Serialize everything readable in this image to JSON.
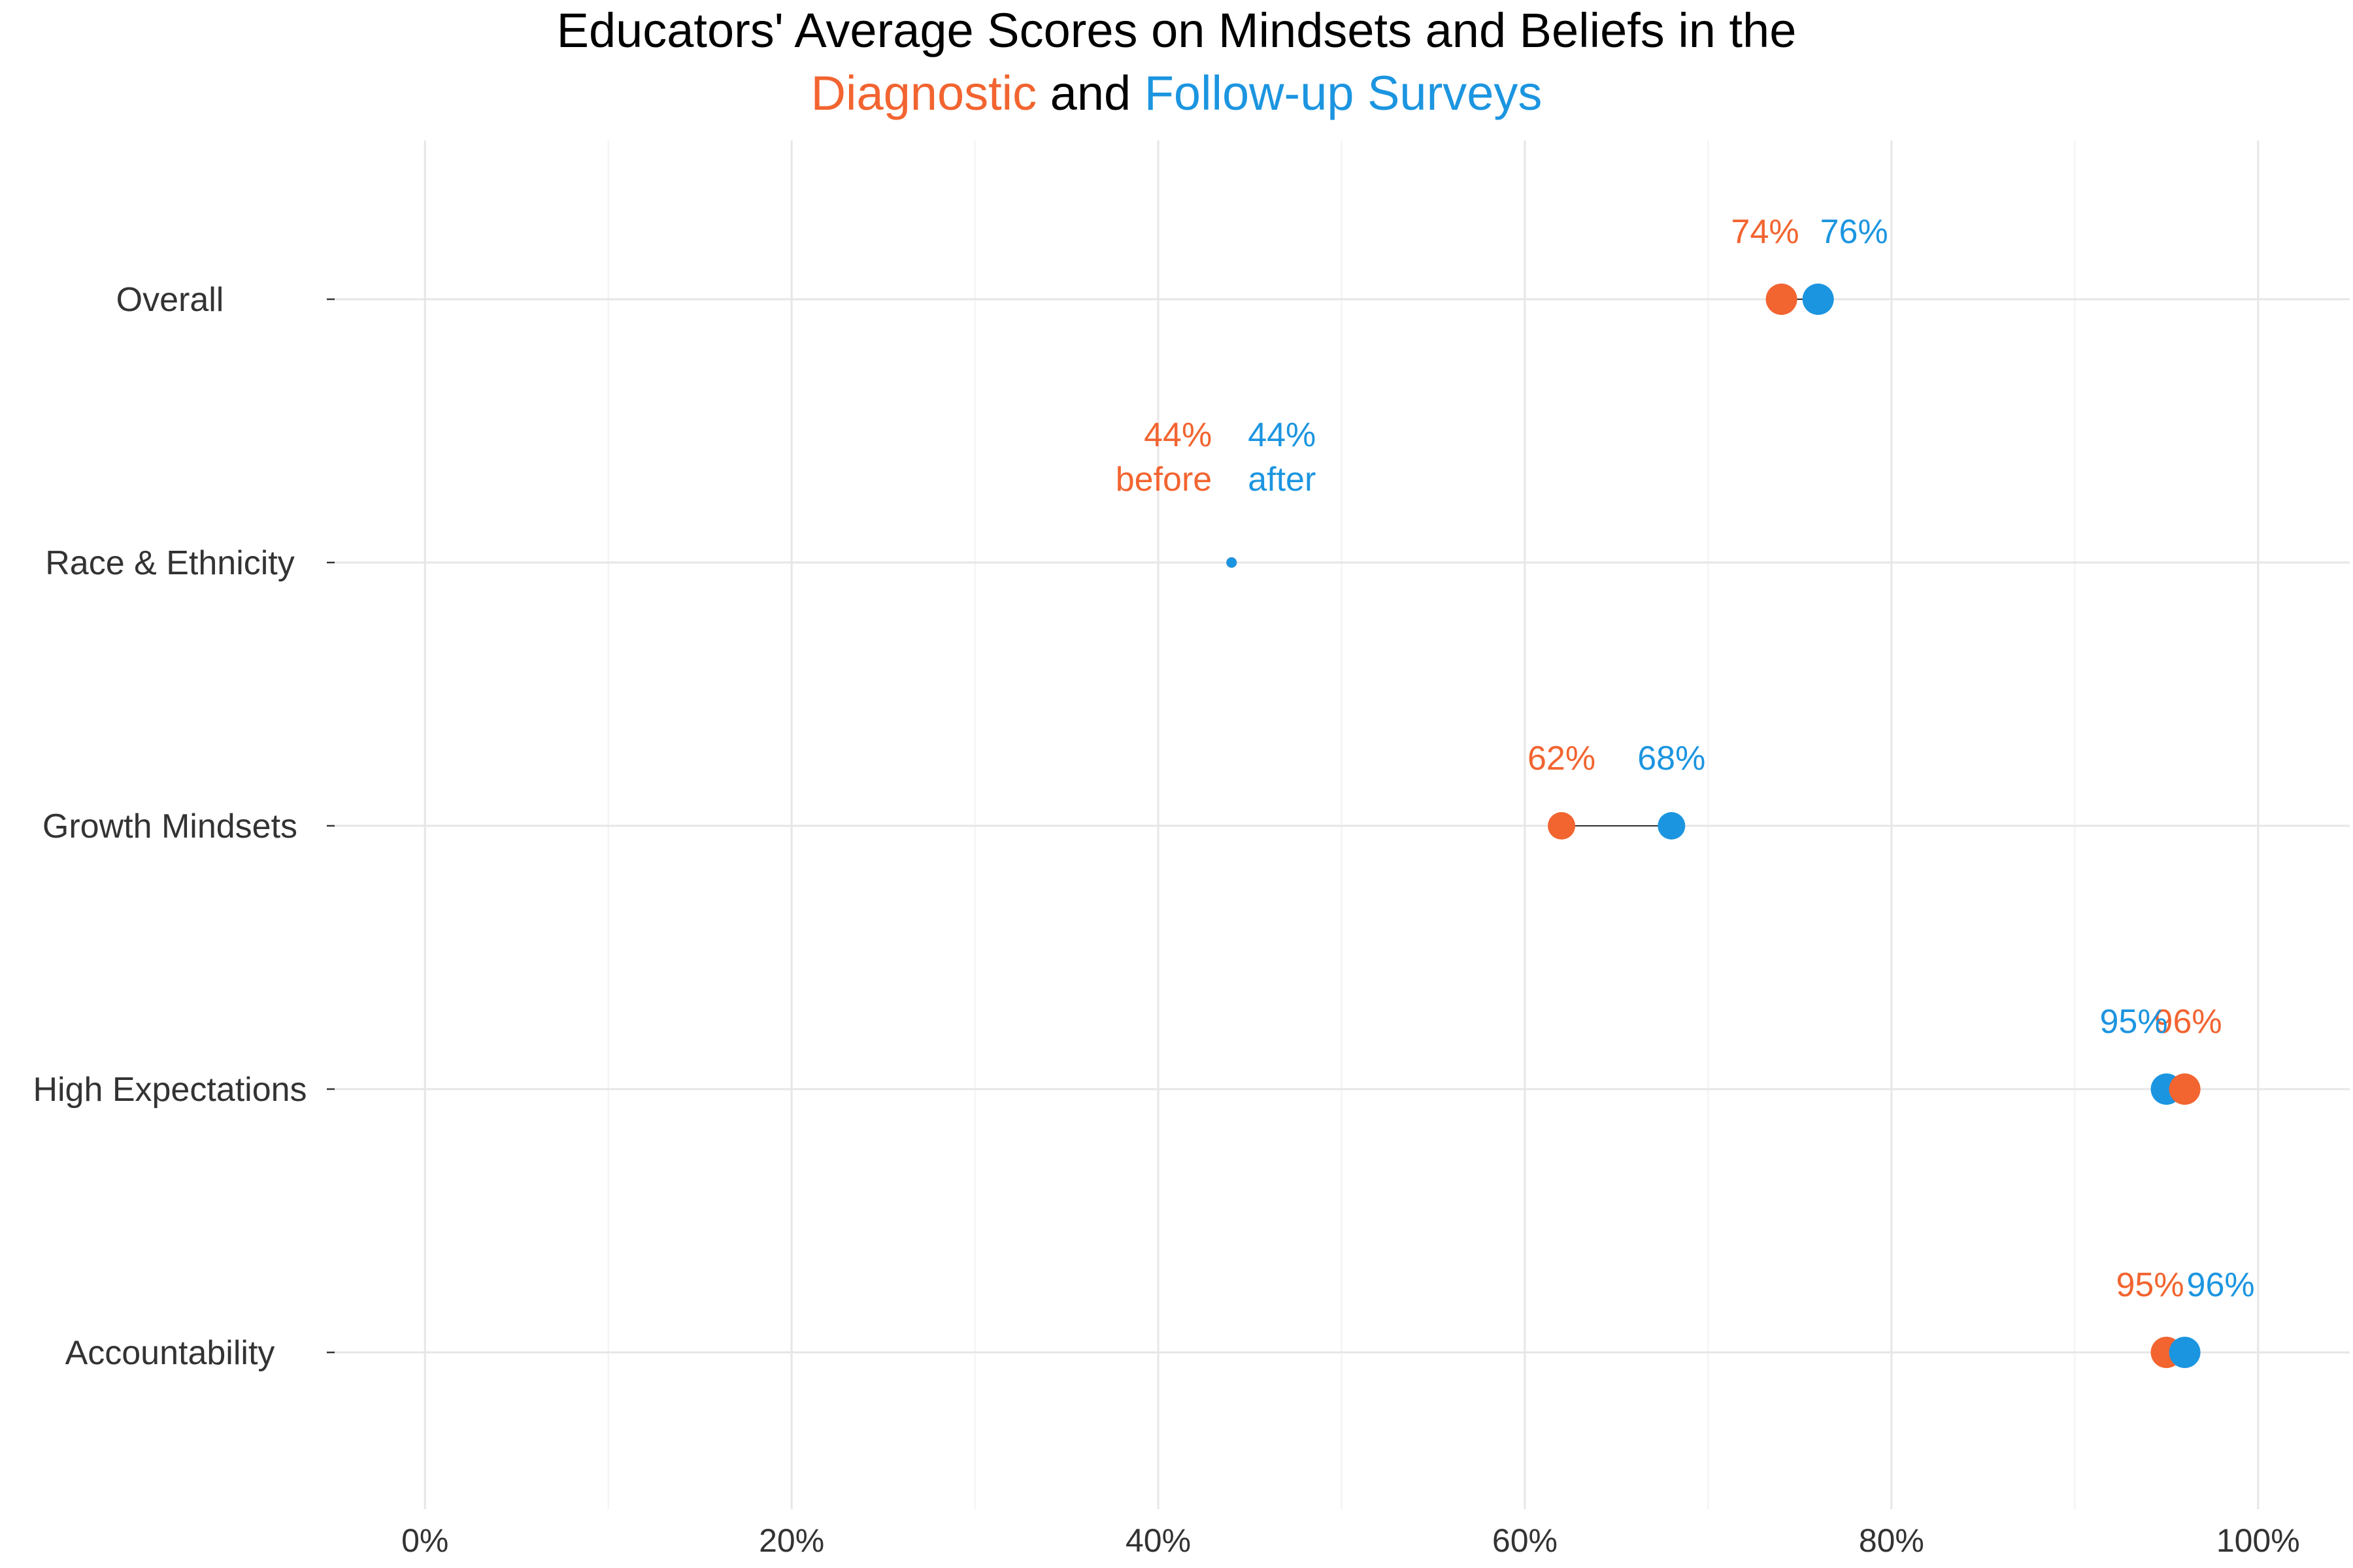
{
  "colors": {
    "diagnostic": "#F26430",
    "followup": "#1C95E0",
    "grid_major": "#E6E6E6",
    "grid_minor": "#F2F2F2",
    "text_dark": "#333333",
    "title": "#000000",
    "arrow": "#333333"
  },
  "chart_data": {
    "type": "dumbbell",
    "title_line1": "Educators' Average Scores on Mindsets and Beliefs in the",
    "title_line2": {
      "part1": "Diagnostic",
      "part2": " and ",
      "part3": "Follow-up Surveys"
    },
    "xlim": [
      -5,
      105
    ],
    "ticks": [
      0,
      20,
      40,
      60,
      80,
      100
    ],
    "tick_labels": [
      "0%",
      "20%",
      "40%",
      "60%",
      "80%",
      "100%"
    ],
    "grid": true,
    "series": [
      {
        "name": "Diagnostic",
        "color_key": "diagnostic"
      },
      {
        "name": "Follow-up Surveys",
        "color_key": "followup"
      }
    ],
    "categories": [
      {
        "label": "Overall",
        "before": 74,
        "after": 76,
        "before_label": "74%",
        "after_label": "76%",
        "before_sub": "",
        "after_sub": ""
      },
      {
        "label": "Race & Ethnicity",
        "before": 44,
        "after": 44,
        "before_label": "44%",
        "after_label": "44%",
        "before_sub": "before",
        "after_sub": "after"
      },
      {
        "label": "Growth Mindsets",
        "before": 62,
        "after": 68,
        "before_label": "62%",
        "after_label": "68%",
        "before_sub": "",
        "after_sub": ""
      },
      {
        "label": "High Expectations",
        "before": 96,
        "after": 95,
        "before_label": "96%",
        "after_label": "95%",
        "before_sub": "",
        "after_sub": ""
      },
      {
        "label": "Accountability",
        "before": 95,
        "after": 96,
        "before_label": "95%",
        "after_label": "96%",
        "before_sub": "",
        "after_sub": ""
      }
    ]
  }
}
